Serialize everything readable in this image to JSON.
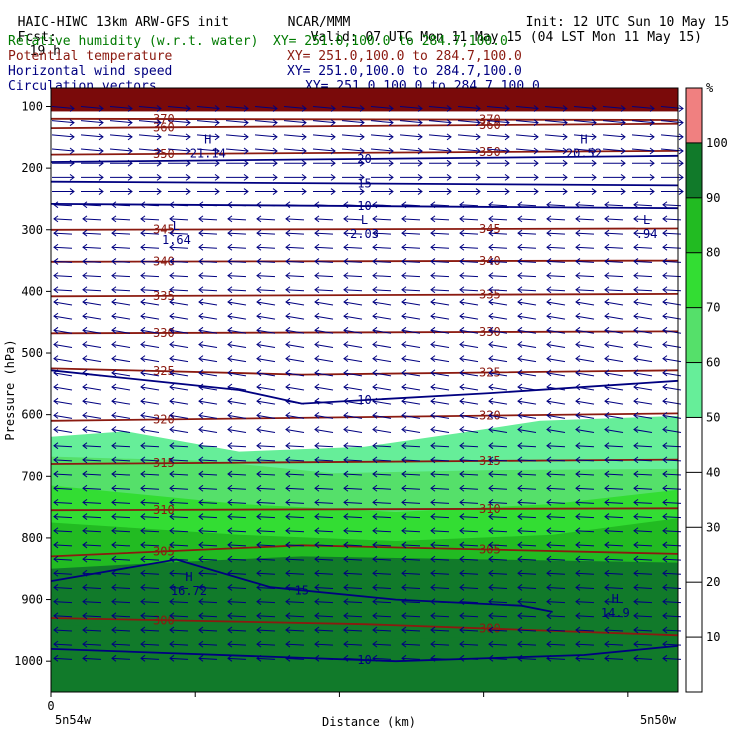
{
  "header": {
    "model": "HAIC-HIWC 13km ARW-GFS init",
    "center": "NCAR/MMM",
    "init": "Init: 12 UTC Sun 10 May 15",
    "fcst_label": "Fcst:",
    "fcst_value": "19 h",
    "valid": "Valid: 07 UTC Mon 11 May 15 (04 LST Mon 11 May 15)",
    "fields": [
      {
        "name": "Relative humidity (w.r.t. water)",
        "xy": "XY= 251.0,100.0 to 284.7,100.0",
        "color": "#007a00"
      },
      {
        "name": "Potential temperature",
        "xy": "XY= 251.0,100.0 to 284.7,100.0",
        "color": "#8b1a10"
      },
      {
        "name": "Horizontal wind speed",
        "xy": "XY= 251.0,100.0 to 284.7,100.0",
        "color": "#000080"
      },
      {
        "name": "Circulation vectors",
        "xy": "XY= 251.0,100.0 to 284.7,100.0",
        "color": "#000080"
      }
    ]
  },
  "chart_data": {
    "type": "contour-cross-section",
    "title": "",
    "xlabel": "Distance (km)",
    "ylabel": "Pressure (hPa)",
    "x_ticks": [
      "0"
    ],
    "x_end_labels": {
      "left": "5n54w",
      "right": "5n50w"
    },
    "y_ticks": [
      100,
      200,
      300,
      400,
      500,
      600,
      700,
      800,
      900,
      1000
    ],
    "ylim": [
      1050,
      70
    ],
    "colorbar": {
      "unit": "%",
      "ticks": [
        10,
        20,
        30,
        40,
        50,
        60,
        70,
        80,
        90,
        100
      ],
      "bins": [
        {
          "from": 50,
          "to": 60,
          "color": "#66ee99"
        },
        {
          "from": 60,
          "to": 70,
          "color": "#55e06a"
        },
        {
          "from": 70,
          "to": 80,
          "color": "#33dd33"
        },
        {
          "from": 80,
          "to": 90,
          "color": "#22bb22"
        },
        {
          "from": 90,
          "to": 100,
          "color": "#117a2a"
        },
        {
          "from": 100,
          "to": 110,
          "color": "#f08080"
        }
      ]
    },
    "rh_fill": [
      {
        "color": "#66ee99",
        "top": [
          [
            0,
            636
          ],
          [
            12,
            627
          ],
          [
            30,
            660
          ],
          [
            50,
            652
          ],
          [
            65,
            630
          ],
          [
            78,
            610
          ],
          [
            100,
            602
          ]
        ]
      },
      {
        "color": "#55e06a",
        "top": [
          [
            0,
            668
          ],
          [
            25,
            675
          ],
          [
            45,
            695
          ],
          [
            70,
            690
          ],
          [
            100,
            688
          ]
        ]
      },
      {
        "color": "#33dd33",
        "top": [
          [
            0,
            715
          ],
          [
            30,
            745
          ],
          [
            55,
            758
          ],
          [
            80,
            745
          ],
          [
            100,
            722
          ]
        ]
      },
      {
        "color": "#22bb22",
        "top": [
          [
            0,
            775
          ],
          [
            30,
            795
          ],
          [
            55,
            805
          ],
          [
            80,
            795
          ],
          [
            100,
            768
          ]
        ]
      },
      {
        "color": "#117a2a",
        "top": [
          [
            0,
            850
          ],
          [
            18,
            840
          ],
          [
            40,
            830
          ],
          [
            70,
            835
          ],
          [
            100,
            840
          ]
        ]
      },
      {
        "color": "#117a2a",
        "top": [
          [
            0,
            940
          ],
          [
            50,
            965
          ],
          [
            100,
            955
          ]
        ]
      }
    ],
    "upper_fill": {
      "color": "#7a0a0a",
      "bottom": 108
    },
    "theta_contours": [
      {
        "label": "370",
        "p": [
          [
            0,
            120
          ],
          [
            100,
            122
          ]
        ]
      },
      {
        "label": "360",
        "p": [
          [
            0,
            135
          ],
          [
            100,
            128
          ]
        ]
      },
      {
        "label": "350",
        "p": [
          [
            0,
            178
          ],
          [
            100,
            172
          ]
        ]
      },
      {
        "label": "345",
        "p": [
          [
            0,
            300
          ],
          [
            100,
            298
          ]
        ]
      },
      {
        "label": "340",
        "p": [
          [
            0,
            352
          ],
          [
            100,
            350
          ]
        ]
      },
      {
        "label": "335",
        "p": [
          [
            0,
            408
          ],
          [
            100,
            404
          ]
        ]
      },
      {
        "label": "330",
        "p": [
          [
            0,
            468
          ],
          [
            100,
            465
          ]
        ]
      },
      {
        "label": "325",
        "p": [
          [
            0,
            525
          ],
          [
            40,
            535
          ],
          [
            100,
            528
          ]
        ]
      },
      {
        "label": "320",
        "p": [
          [
            0,
            610
          ],
          [
            100,
            598
          ]
        ]
      },
      {
        "label": "315",
        "p": [
          [
            0,
            680
          ],
          [
            100,
            673
          ]
        ]
      },
      {
        "label": "310",
        "p": [
          [
            0,
            755
          ],
          [
            100,
            752
          ]
        ]
      },
      {
        "label": "305",
        "p": [
          [
            0,
            830
          ],
          [
            40,
            812
          ],
          [
            100,
            826
          ]
        ]
      },
      {
        "label": "300",
        "p": [
          [
            0,
            930
          ],
          [
            50,
            940
          ],
          [
            100,
            958
          ]
        ]
      }
    ],
    "wind_contours": [
      {
        "label": "20",
        "p": [
          [
            0,
            190
          ],
          [
            100,
            180
          ]
        ]
      },
      {
        "label": "15",
        "p": [
          [
            0,
            222
          ],
          [
            100,
            228
          ]
        ]
      },
      {
        "label": "10",
        "p": [
          [
            0,
            258
          ],
          [
            100,
            265
          ]
        ]
      },
      {
        "label": "10",
        "p": [
          [
            0,
            528
          ],
          [
            30,
            560
          ],
          [
            40,
            582
          ],
          [
            70,
            565
          ],
          [
            100,
            545
          ]
        ]
      },
      {
        "label": "15",
        "p": [
          [
            0,
            870
          ],
          [
            20,
            835
          ],
          [
            35,
            880
          ],
          [
            55,
            900
          ],
          [
            75,
            910
          ],
          [
            80,
            920
          ]
        ]
      },
      {
        "label": "10",
        "p": [
          [
            0,
            980
          ],
          [
            55,
            1000
          ],
          [
            85,
            990
          ],
          [
            100,
            975
          ]
        ]
      }
    ],
    "extrema": [
      {
        "type": "H",
        "value": "21.14",
        "x": 25,
        "p": 170
      },
      {
        "type": "H",
        "value": "20.52",
        "x": 85,
        "p": 170
      },
      {
        "type": "L",
        "value": "1.64",
        "x": 20,
        "p": 310
      },
      {
        "type": "L",
        "value": "2.03",
        "x": 50,
        "p": 300
      },
      {
        "type": "L",
        "value": ".94",
        "x": 95,
        "p": 300
      },
      {
        "type": "H",
        "value": "16.72",
        "x": 22,
        "p": 880
      },
      {
        "type": "H",
        "value": "14.9",
        "x": 90,
        "p": 915
      }
    ],
    "grid": false
  }
}
